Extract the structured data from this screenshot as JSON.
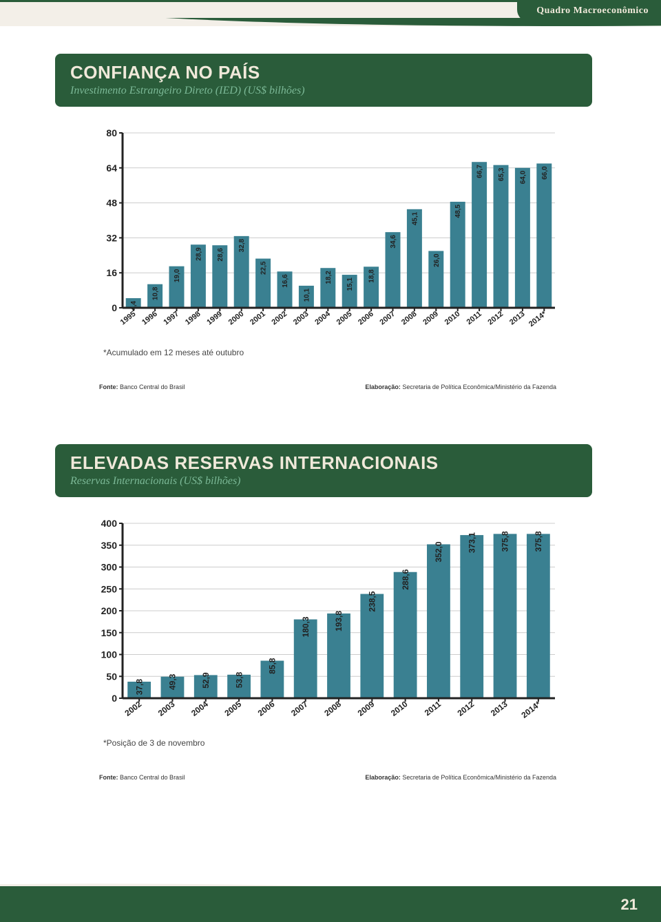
{
  "header": {
    "tab": "Quadro Macroeconômico"
  },
  "page_number": "21",
  "section1": {
    "title": "CONFIANÇA NO PAÍS",
    "subtitle": "Investimento Estrangeiro Direto (IED) (US$ bilhões)",
    "chart": {
      "type": "bar",
      "categories": [
        "1995",
        "1996",
        "1997",
        "1998",
        "1999",
        "2000",
        "2001",
        "2002",
        "2003",
        "2004",
        "2005",
        "2006",
        "2007",
        "2008",
        "2009",
        "2010",
        "2011",
        "2012",
        "2013",
        "2014*"
      ],
      "values": [
        4.4,
        10.8,
        19.0,
        28.9,
        28.6,
        32.8,
        22.5,
        16.6,
        10.1,
        18.2,
        15.1,
        18.8,
        34.6,
        45.1,
        26.0,
        48.5,
        66.7,
        65.3,
        64.0,
        66.0
      ],
      "ylim": [
        0,
        80
      ],
      "ytick_step": 16,
      "bar_color": "#3a8091",
      "axis_color": "#222222",
      "grid_color": "#cccccc",
      "label_fontsize": 10,
      "axis_fontsize": 14,
      "x_fontsize": 11,
      "background_color": "#ffffff"
    },
    "footnote": "*Acumulado em 12 meses até outubro",
    "source_label": "Fonte:",
    "source": "Banco Central do Brasil",
    "elab_label": "Elaboração:",
    "elab": "Secretaria de Política Econômica/Ministério da Fazenda"
  },
  "section2": {
    "title": "ELEVADAS RESERVAS INTERNACIONAIS",
    "subtitle": "Reservas Internacionais (US$ bilhões)",
    "chart": {
      "type": "bar",
      "categories": [
        "2002",
        "2003",
        "2004",
        "2005",
        "2006",
        "2007",
        "2008",
        "2009",
        "2010",
        "2011",
        "2012",
        "2013",
        "2014*"
      ],
      "values": [
        37.8,
        49.3,
        52.9,
        53.8,
        85.8,
        180.3,
        193.8,
        238.5,
        288.6,
        352.0,
        373.1,
        375.8,
        375.8
      ],
      "ylim": [
        0,
        400
      ],
      "ytick_step": 50,
      "bar_color": "#3a8091",
      "axis_color": "#222222",
      "grid_color": "#cccccc",
      "label_fontsize": 12,
      "axis_fontsize": 14,
      "x_fontsize": 12,
      "background_color": "#ffffff"
    },
    "footnote": "*Posição de 3 de novembro",
    "source_label": "Fonte:",
    "source": "Banco Central do Brasil",
    "elab_label": "Elaboração:",
    "elab": "Secretaria de Política Econômica/Ministério da Fazenda"
  }
}
